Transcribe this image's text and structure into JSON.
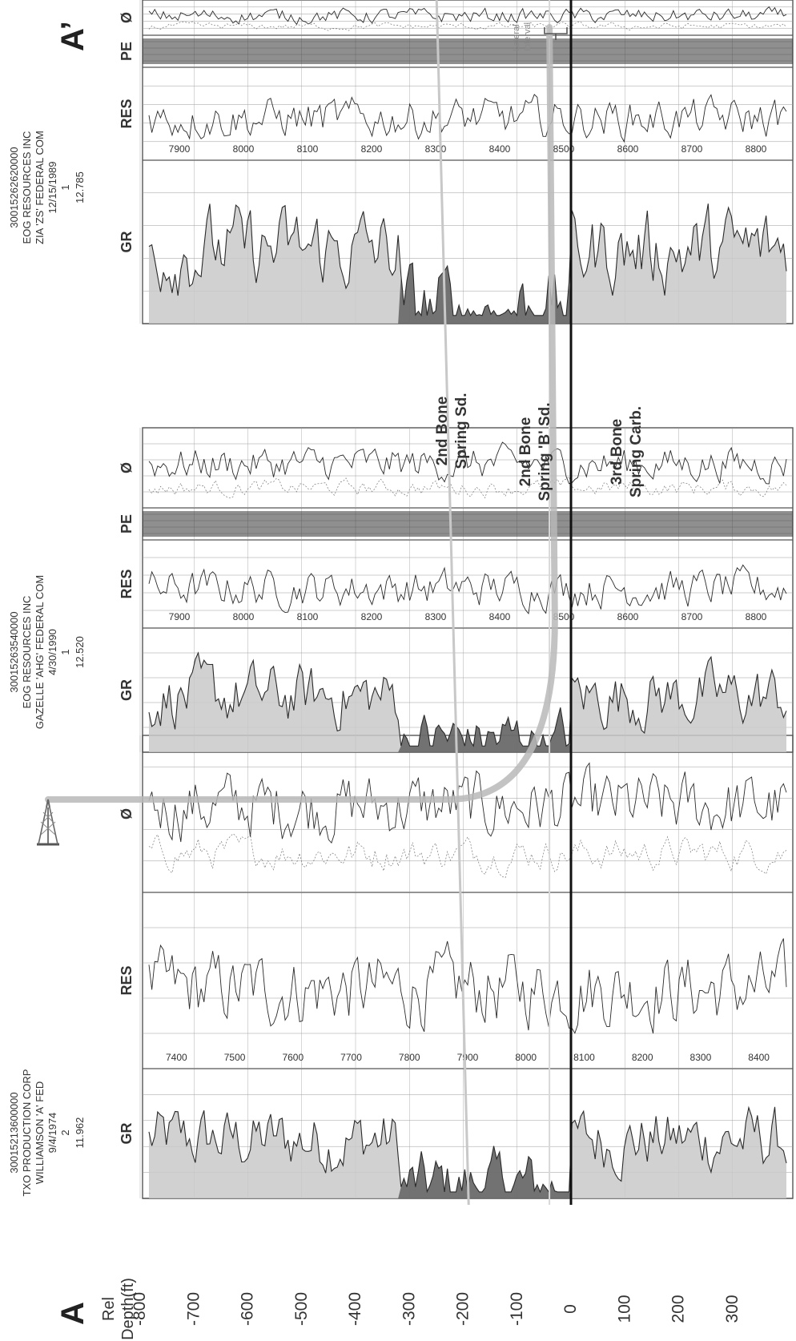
{
  "section": {
    "start_label": "A",
    "end_label": "A’",
    "axis_title_line1": "Rel",
    "axis_title_line2": "Depth(ft)",
    "axis_ticks": [
      "-800",
      "-700",
      "-600",
      "-500",
      "-400",
      "-300",
      "-200",
      "-100",
      "0",
      "100",
      "200",
      "300"
    ]
  },
  "wells": [
    {
      "api": "30015213600000",
      "operator": "TXO PRODUCTION CORP",
      "lease": "WILLIAMSON 'A' FED",
      "date": "9/4/1974",
      "number": "2",
      "elevation": "11.962",
      "tracks": [
        "GR",
        "RES",
        "Ø"
      ],
      "depth_ticks": [
        "7400",
        "7500",
        "7600",
        "7700",
        "7800",
        "7900",
        "8000",
        "8100",
        "8200",
        "8300",
        "8400"
      ]
    },
    {
      "api": "30015263540000",
      "operator": "EOG RESOURCES INC",
      "lease": "GAZELLE 'AHG' FEDERAL COM",
      "date": "4/30/1990",
      "number": "1",
      "elevation": "12.520",
      "tracks": [
        "GR",
        "RES",
        "PE",
        "Ø"
      ],
      "depth_ticks": [
        "7900",
        "8000",
        "8100",
        "8200",
        "8300",
        "8400",
        "8500",
        "8600",
        "8700",
        "8800"
      ]
    },
    {
      "api": "30015262620000",
      "operator": "EOG RESOURCES INC",
      "lease": "ZIA 'ZS' FEDERAL COM",
      "date": "12/15/1989",
      "number": "1",
      "elevation": "12.785",
      "tracks": [
        "GR",
        "RES",
        "PE",
        "Ø"
      ],
      "depth_ticks": [
        "7900",
        "8000",
        "8100",
        "8200",
        "8300",
        "8400",
        "8500",
        "8600",
        "8700",
        "8800"
      ]
    }
  ],
  "formations": [
    {
      "line1": "2nd Bone",
      "line2": "Spring Sd."
    },
    {
      "line1": "2nd Bone",
      "line2": "Spring 'B' Sd."
    },
    {
      "line1": "3rd Bone",
      "line2": "Spring Carb."
    }
  ],
  "lateral_label_line1": "Lateral",
  "lateral_label_line2": "Interval",
  "colors": {
    "curve": "#2a2a2a",
    "grid": "#9a9a9a",
    "gr_fill": "#c9c9c9",
    "gr_fill_dark": "#4a4a4a",
    "datum": "#111111",
    "wellpath": "#b9b9b9",
    "marker": "#c8c8c8"
  }
}
